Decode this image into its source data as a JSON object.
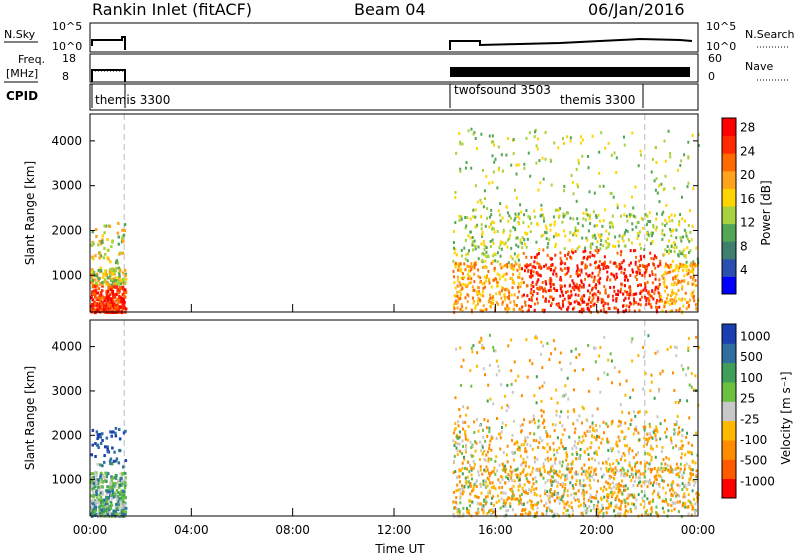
{
  "header": {
    "station": "Rankin Inlet (fitACF)",
    "beam": "Beam 04",
    "date": "06/Jan/2016"
  },
  "colors": {
    "power_scale": [
      "#0000ff",
      "#2b4fb0",
      "#3f7f6e",
      "#54a657",
      "#a8d23d",
      "#ffd400",
      "#ffa31a",
      "#ff6a00",
      "#ff2a00",
      "#ff0000"
    ],
    "velocity_scale": [
      "#ff0000",
      "#ff5a00",
      "#ff8c00",
      "#ffb800",
      "#c8c8c8",
      "#6cc040",
      "#3f9f5a",
      "#2f6fa0",
      "#1a3fb0"
    ],
    "line": "#000000",
    "dashed": "#bbbbbb"
  },
  "panels": {
    "nsky_label": "N.Sky",
    "nsky_ticks": [
      "10^5",
      "10^0"
    ],
    "nsky_right_ticks": [
      "10^5",
      "10^0"
    ],
    "nsearch_label": "N.Search",
    "freq_label": "Freq.",
    "freq_unit": "[MHz]",
    "freq_ticks": [
      "18",
      "8"
    ],
    "nave_label": "Nave",
    "nave_ticks": [
      "60",
      "0"
    ],
    "cpid_label": "CPID",
    "cpid_segments": [
      "themis 3300",
      "twofsound 3503",
      "themis 3300"
    ]
  },
  "chart_data": [
    {
      "type": "heatmap",
      "ylabel": "Slant Range [km]",
      "y_ticks": [
        "1000",
        "2000",
        "3000",
        "4000"
      ],
      "ylim": [
        180,
        4600
      ],
      "xlim_hours": [
        0,
        24
      ],
      "colorbar_label": "Power [dB]",
      "colorbar_ticks": [
        "4",
        "8",
        "12",
        "16",
        "20",
        "24",
        "28"
      ],
      "scatter_intervals_UT": [
        [
          "00:00",
          "01:30"
        ],
        [
          "14:20",
          "24:00"
        ]
      ]
    },
    {
      "type": "heatmap",
      "ylabel": "Slant Range [km]",
      "y_ticks": [
        "1000",
        "2000",
        "3000",
        "4000"
      ],
      "ylim": [
        180,
        4600
      ],
      "xlim_hours": [
        0,
        24
      ],
      "colorbar_label": "Velocity [m s⁻¹]",
      "colorbar_ticks": [
        "1000",
        "500",
        "100",
        "25",
        "-25",
        "-100",
        "-500",
        "-1000"
      ],
      "scatter_intervals_UT": [
        [
          "00:00",
          "01:30"
        ],
        [
          "14:20",
          "24:00"
        ]
      ]
    }
  ],
  "x_axis": {
    "ticks": [
      "00:00",
      "04:00",
      "08:00",
      "12:00",
      "16:00",
      "20:00",
      "00:00"
    ],
    "label": "Time UT"
  }
}
